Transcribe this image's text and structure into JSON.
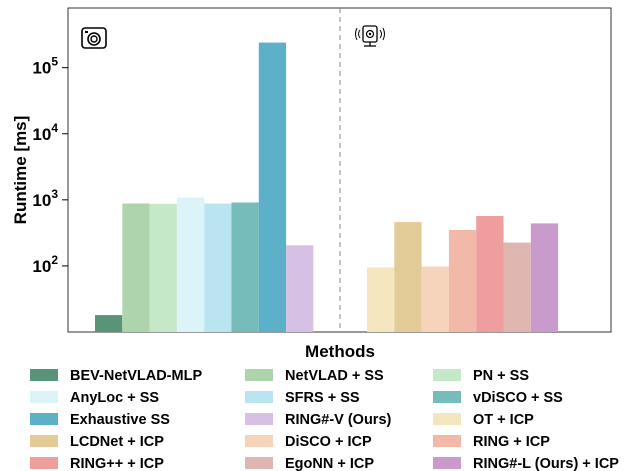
{
  "chart_data": {
    "type": "bar",
    "title": "",
    "xlabel": "Methods",
    "ylabel": "Runtime [ms]",
    "yscale": "log",
    "ylim": [
      10,
      800000
    ],
    "yticks": [
      {
        "value": 100,
        "base": "10",
        "exp": "2"
      },
      {
        "value": 1000,
        "base": "10",
        "exp": "3"
      },
      {
        "value": 10000,
        "base": "10",
        "exp": "4"
      },
      {
        "value": 100000,
        "base": "10",
        "exp": "5"
      }
    ],
    "grid": false,
    "legend_position": "bottom",
    "groups": [
      {
        "icon": "camera-icon",
        "bars": [
          {
            "name": "BEV-NetVLAD-MLP",
            "value": 18,
            "color": "#5a9478"
          },
          {
            "name": "NetVLAD + SS",
            "value": 880,
            "color": "#aed4ac"
          },
          {
            "name": "PN + SS",
            "value": 870,
            "color": "#c5e8c8"
          },
          {
            "name": "AnyLoc + SS",
            "value": 1080,
            "color": "#dcf3f7"
          },
          {
            "name": "SFRS + SS",
            "value": 880,
            "color": "#b8e5ef"
          },
          {
            "name": "vDiSCO + SS",
            "value": 910,
            "color": "#76bcbb"
          },
          {
            "name": "Exhaustive SS",
            "value": 240000,
            "color": "#5cb0c7"
          },
          {
            "name": "RING#-V (Ours)",
            "value": 205,
            "color": "#d6c0e4"
          }
        ]
      },
      {
        "icon": "lidar-sensor-icon",
        "bars": [
          {
            "name": "OT + ICP",
            "value": 95,
            "color": "#f5e6bf"
          },
          {
            "name": "LCDNet + ICP",
            "value": 460,
            "color": "#e3cb98"
          },
          {
            "name": "DiSCO + ICP",
            "value": 98,
            "color": "#f6d4bc"
          },
          {
            "name": "RING + ICP",
            "value": 350,
            "color": "#f2b8a8"
          },
          {
            "name": "RING++ + ICP",
            "value": 570,
            "color": "#ef9e9e"
          },
          {
            "name": "EgoNN + ICP",
            "value": 225,
            "color": "#e0b6b0"
          },
          {
            "name": "RING#-L (Ours) + ICP",
            "value": 440,
            "color": "#c99bcc"
          }
        ]
      }
    ],
    "legend": [
      "BEV-NetVLAD-MLP",
      "NetVLAD + SS",
      "PN + SS",
      "AnyLoc + SS",
      "SFRS + SS",
      "vDiSCO + SS",
      "Exhaustive SS",
      "RING#-V (Ours)",
      "OT + ICP",
      "LCDNet + ICP",
      "DiSCO + ICP",
      "RING + ICP",
      "RING++ + ICP",
      "EgoNN + ICP",
      "RING#-L (Ours) + ICP"
    ]
  }
}
